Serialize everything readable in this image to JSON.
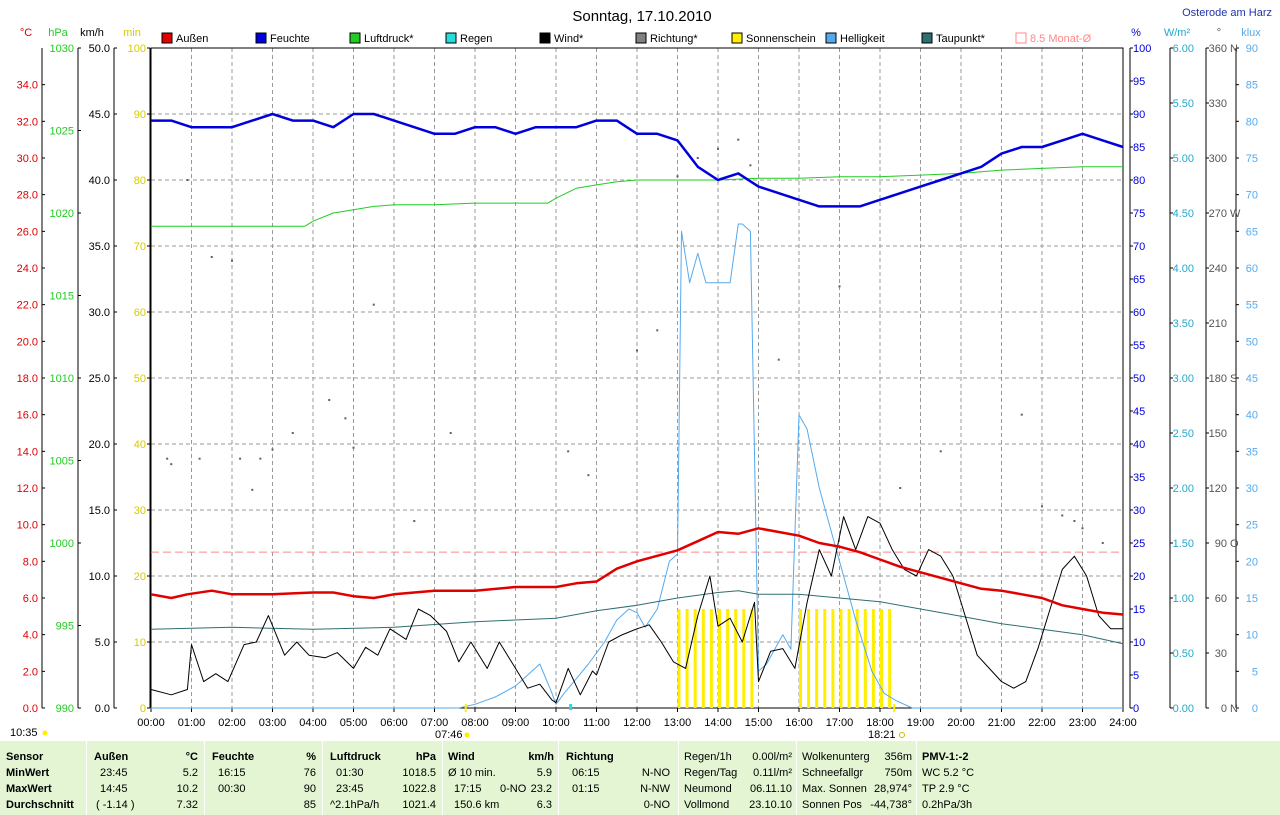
{
  "header": {
    "title": "Sonntag, 17.10.2010",
    "location": "Osterode am Harz"
  },
  "axes_units": {
    "temp": "°C",
    "pressure": "hPa",
    "wind": "km/h",
    "sun": "min",
    "humidity": "%",
    "radiation": "W/m²",
    "direction": "°",
    "brightness": "klux"
  },
  "colors": {
    "aussen": "#e00000",
    "feuchte": "#0000dd",
    "luftdruck": "#22cc22",
    "regen": "#22dddd",
    "wind": "#000000",
    "richtung": "#808080",
    "sonnenschein": "#ffee00",
    "helligkeit": "#55aaee",
    "taupunkt": "#2f6f6f",
    "monat": "#ff8888"
  },
  "chart_data": {
    "type": "line",
    "title": "Sonntag, 17.10.2010",
    "legend_position": "top",
    "grid": true,
    "x_ticks": [
      "00:00",
      "01:00",
      "02:00",
      "03:00",
      "04:00",
      "05:00",
      "06:00",
      "07:00",
      "08:00",
      "09:00",
      "10:00",
      "11:00",
      "12:00",
      "13:00",
      "14:00",
      "15:00",
      "16:00",
      "17:00",
      "18:00",
      "19:00",
      "20:00",
      "21:00",
      "22:00",
      "23:00",
      "24:00"
    ],
    "xlim": [
      0,
      24
    ],
    "axes": {
      "temp": {
        "min": 0,
        "max": 36,
        "step": 2,
        "ticks": [
          "0.0",
          "2.0",
          "4.0",
          "6.0",
          "8.0",
          "10.0",
          "12.0",
          "14.0",
          "16.0",
          "18.0",
          "20.0",
          "22.0",
          "24.0",
          "26.0",
          "28.0",
          "30.0",
          "32.0",
          "34.0"
        ]
      },
      "pressure": {
        "min": 990,
        "max": 1030,
        "ticks": [
          "990",
          "995",
          "1000",
          "1005",
          "1010",
          "1015",
          "1020",
          "1025",
          "1030"
        ]
      },
      "wind": {
        "min": 0,
        "max": 50,
        "ticks": [
          "0.0",
          "5.0",
          "10.0",
          "15.0",
          "20.0",
          "25.0",
          "30.0",
          "35.0",
          "40.0",
          "45.0",
          "50.0"
        ]
      },
      "sun": {
        "min": 0,
        "max": 100,
        "ticks": [
          "0",
          "10",
          "20",
          "30",
          "40",
          "50",
          "60",
          "70",
          "80",
          "90",
          "100"
        ]
      },
      "humidity": {
        "min": 0,
        "max": 100,
        "ticks": [
          "0",
          "5",
          "10",
          "15",
          "20",
          "25",
          "30",
          "35",
          "40",
          "45",
          "50",
          "55",
          "60",
          "65",
          "70",
          "75",
          "80",
          "85",
          "90",
          "95",
          "100"
        ]
      },
      "radiation": {
        "min": 0,
        "max": 6,
        "ticks": [
          "0.00",
          "0.50",
          "1.00",
          "1.50",
          "2.00",
          "2.50",
          "3.00",
          "3.50",
          "4.00",
          "4.50",
          "5.00",
          "5.50",
          "6.00"
        ]
      },
      "direction": {
        "min": 0,
        "max": 360,
        "ticks": [
          "0",
          "30",
          "60",
          "90",
          "120",
          "150",
          "180",
          "210",
          "240",
          "270",
          "300",
          "330",
          "360"
        ],
        "compass": [
          "N",
          "O",
          "S",
          "W",
          "N"
        ]
      },
      "brightness": {
        "min": 0,
        "max": 90,
        "ticks": [
          "0",
          "5",
          "10",
          "15",
          "20",
          "25",
          "30",
          "35",
          "40",
          "45",
          "50",
          "55",
          "60",
          "65",
          "70",
          "75",
          "80",
          "85",
          "90"
        ]
      }
    },
    "series": [
      {
        "name": "Außen",
        "axis": "temp",
        "x": [
          0,
          0.5,
          0.9,
          1.5,
          2,
          3,
          4,
          4.5,
          5,
          5.5,
          6,
          7,
          8,
          9,
          10,
          10.5,
          11,
          11.5,
          12,
          12.5,
          13,
          13.5,
          14,
          14.5,
          15,
          15.5,
          16,
          16.5,
          17,
          17.5,
          18,
          18.5,
          19,
          19.5,
          20,
          20.5,
          21,
          21.5,
          22,
          22.5,
          23,
          23.5,
          24
        ],
        "y": [
          6.2,
          6.0,
          6.2,
          6.4,
          6.2,
          6.2,
          6.3,
          6.3,
          6.1,
          6.0,
          6.2,
          6.4,
          6.4,
          6.6,
          6.6,
          6.8,
          6.9,
          7.6,
          8.0,
          8.3,
          8.6,
          9.1,
          9.6,
          9.5,
          9.8,
          9.6,
          9.4,
          9.0,
          8.8,
          8.5,
          8.1,
          7.7,
          7.4,
          7.1,
          6.8,
          6.5,
          6.4,
          6.2,
          6.0,
          5.6,
          5.4,
          5.2,
          5.1
        ]
      },
      {
        "name": "Feuchte",
        "axis": "humidity",
        "x": [
          0,
          0.5,
          1,
          1.5,
          2,
          2.5,
          3,
          3.5,
          4,
          4.5,
          5,
          5.5,
          6,
          6.5,
          7,
          7.5,
          8,
          8.5,
          9,
          9.5,
          10,
          10.5,
          11,
          11.5,
          12,
          12.5,
          13,
          13.5,
          14,
          14.5,
          15,
          15.5,
          16,
          16.5,
          17,
          17.5,
          18,
          18.5,
          19,
          19.5,
          20,
          20.5,
          21,
          21.5,
          22,
          22.5,
          23,
          23.5,
          24
        ],
        "y": [
          89,
          89,
          88,
          88,
          88,
          89,
          90,
          89,
          89,
          88,
          90,
          90,
          89,
          88,
          87,
          87,
          88,
          88,
          87,
          88,
          88,
          88,
          89,
          89,
          87,
          87,
          86,
          82,
          80,
          81,
          79,
          78,
          77,
          76,
          76,
          76,
          77,
          78,
          79,
          80,
          81,
          82,
          84,
          85,
          85,
          86,
          87,
          86,
          85
        ]
      },
      {
        "name": "Luftdruck",
        "axis": "pressure",
        "x": [
          0,
          2,
          3.8,
          4,
          4.5,
          5,
          5.5,
          6,
          7,
          8,
          9,
          9.8,
          10,
          10.5,
          11,
          11.5,
          12,
          13,
          14,
          15,
          16,
          17,
          18,
          19,
          20,
          21,
          22,
          23,
          24
        ],
        "y": [
          1019.2,
          1019.2,
          1019.2,
          1019.5,
          1020.0,
          1020.2,
          1020.4,
          1020.5,
          1020.5,
          1020.6,
          1020.6,
          1020.6,
          1020.9,
          1021.5,
          1021.7,
          1021.9,
          1022.0,
          1022.0,
          1022.0,
          1022.1,
          1022.1,
          1022.2,
          1022.2,
          1022.3,
          1022.4,
          1022.6,
          1022.7,
          1022.8,
          1022.8
        ]
      },
      {
        "name": "Wind",
        "axis": "wind",
        "x": [
          0,
          0.5,
          0.9,
          1,
          1.3,
          1.6,
          1.9,
          2.3,
          2.6,
          2.9,
          3.3,
          3.6,
          3.9,
          4.3,
          4.6,
          5,
          5.3,
          5.6,
          5.9,
          6.3,
          6.6,
          6.9,
          7.3,
          7.6,
          7.9,
          8.3,
          8.6,
          9,
          9.3,
          9.6,
          9.9,
          10,
          10.3,
          10.6,
          10.9,
          11,
          11.3,
          11.6,
          12,
          12.3,
          12.6,
          12.9,
          13.2,
          13.5,
          13.8,
          14,
          14.3,
          14.6,
          14.9,
          15,
          15.3,
          15.6,
          15.9,
          16.2,
          16.5,
          16.8,
          17.1,
          17.4,
          17.7,
          18,
          18.3,
          18.6,
          18.9,
          19.2,
          19.5,
          19.8,
          20.1,
          20.4,
          20.7,
          21,
          21.3,
          21.6,
          21.9,
          22.2,
          22.5,
          22.8,
          23.1,
          23.4,
          23.7,
          24
        ],
        "y": [
          1.4,
          1.0,
          1.4,
          4.8,
          2.0,
          2.6,
          2.0,
          4.8,
          5.0,
          7.0,
          4.0,
          5.0,
          4.0,
          3.8,
          4.2,
          3.0,
          4.6,
          4.0,
          6.0,
          5.2,
          7.5,
          7.0,
          5.8,
          3.5,
          5.0,
          3.0,
          5.0,
          3.0,
          1.5,
          1.8,
          0.6,
          0.4,
          3.0,
          1.0,
          2.8,
          2.5,
          5.0,
          5.5,
          6.0,
          6.3,
          5.0,
          3.5,
          3.0,
          7.0,
          10.0,
          6.2,
          6.8,
          5.0,
          8.0,
          2.0,
          4.3,
          4.5,
          3.0,
          8.0,
          12.0,
          10.0,
          14.5,
          12.0,
          14.5,
          14.0,
          12.0,
          10.5,
          10.0,
          12.0,
          11.5,
          10.0,
          7.0,
          4.0,
          3.0,
          2.0,
          1.5,
          2.0,
          4.5,
          7.5,
          10.5,
          11.5,
          10.0,
          7.0,
          6.0,
          6.0
        ]
      },
      {
        "name": "Sonnenschein",
        "axis": "sun",
        "bars_x": [
          13.0,
          13.2,
          13.4,
          13.6,
          13.8,
          14.0,
          14.2,
          14.4,
          14.6,
          14.8,
          16.0,
          16.2,
          16.4,
          16.6,
          16.8,
          17.0,
          17.2,
          17.4,
          17.6,
          17.8,
          18.0,
          18.2
        ],
        "bars_y": [
          15,
          15,
          15,
          15,
          15,
          15,
          15,
          15,
          15,
          15,
          15,
          15,
          15,
          15,
          15,
          15,
          15,
          15,
          15,
          15,
          15,
          15
        ]
      },
      {
        "name": "Helligkeit",
        "axis": "brightness",
        "x": [
          0,
          7.6,
          8,
          8.5,
          9,
          9.3,
          9.6,
          9.9,
          10,
          10.2,
          10.5,
          10.8,
          11,
          11.2,
          11.5,
          11.8,
          12,
          12.2,
          12.5,
          12.8,
          13.0,
          13.1,
          13.3,
          13.5,
          13.7,
          13.9,
          14.1,
          14.3,
          14.5,
          14.6,
          14.8,
          15,
          15.2,
          15.4,
          15.6,
          15.8,
          16.0,
          16.2,
          16.5,
          16.8,
          17.1,
          17.4,
          17.8,
          18.1,
          18.4,
          18.8,
          24
        ],
        "y": [
          0,
          0,
          0.5,
          1.5,
          3,
          4.5,
          6,
          2,
          0.5,
          2,
          4,
          6,
          7.5,
          9,
          12,
          13.5,
          13,
          11,
          13.5,
          20,
          21,
          65,
          58,
          62,
          58,
          58,
          58,
          58,
          66,
          66,
          65,
          5,
          6,
          8,
          10,
          8,
          40,
          38,
          30,
          24,
          18,
          12,
          5,
          2,
          1,
          0,
          0
        ]
      },
      {
        "name": "Taupunkt",
        "axis": "temp",
        "x": [
          0,
          2,
          4,
          6,
          8,
          9,
          10,
          11,
          12,
          13,
          14,
          14.5,
          15,
          16,
          17,
          18,
          19,
          20,
          21,
          22,
          23,
          24
        ],
        "y": [
          4.3,
          4.4,
          4.3,
          4.4,
          4.7,
          4.8,
          4.9,
          5.3,
          5.6,
          6.0,
          6.3,
          6.4,
          6.2,
          6.2,
          6.0,
          5.8,
          5.4,
          5.0,
          4.6,
          4.3,
          4.0,
          3.5
        ]
      },
      {
        "name": "Richtung",
        "axis": "direction",
        "x": [
          0.4,
          0.5,
          0.9,
          1.2,
          1.5,
          2.0,
          2.2,
          2.5,
          2.7,
          3.0,
          3.5,
          4.4,
          4.8,
          5.0,
          5.5,
          6.5,
          7.4,
          10.3,
          10.8,
          12.0,
          12.5,
          13.0,
          13.5,
          14.0,
          14.5,
          14.8,
          15.5,
          17.0,
          18.5,
          19.5,
          21.5,
          22,
          22.5,
          22.8,
          23.0,
          23.5
        ],
        "y": [
          136,
          133,
          288,
          136,
          246,
          244,
          136,
          119,
          136,
          141,
          150,
          168,
          158,
          142,
          220,
          102,
          150,
          140,
          127,
          195,
          206,
          290,
          300,
          305,
          310,
          296,
          190,
          230,
          120,
          140,
          160,
          110,
          105,
          102,
          98,
          90
        ]
      },
      {
        "name": "8.5 Monat-Ø",
        "axis": "temp",
        "constant": 8.5
      }
    ],
    "legend": [
      "Außen",
      "Feuchte",
      "Luftdruck*",
      "Regen",
      "Wind*",
      "Richtung*",
      "Sonnenschein",
      "Helligkeit",
      "Taupunkt*",
      "8.5 Monat-Ø"
    ],
    "annotations": [
      "10:35",
      "07:46",
      "18:21"
    ]
  },
  "footer": {
    "sensor": {
      "h1": "Sensor",
      "min": "MinWert",
      "max": "MaxWert",
      "avg": "Durchschnitt"
    },
    "aussen": {
      "title": "Außen",
      "unit": "°C",
      "min_t": "23:45",
      "min_v": "5.2",
      "max_t": "14:45",
      "max_v": "10.2",
      "avg_t": "( -1.14 )",
      "avg_v": "7.32"
    },
    "feuchte": {
      "title": "Feuchte",
      "unit": "%",
      "min_t": "16:15",
      "min_v": "76",
      "max_t": "00:30",
      "max_v": "90",
      "avg_t": "",
      "avg_v": "85"
    },
    "luftdruck": {
      "title": "Luftdruck",
      "unit": "hPa",
      "min_t": "01:30",
      "min_v": "1018.5",
      "max_t": "23:45",
      "max_v": "1022.8",
      "avg_t": "^2.1hPa/h",
      "avg_v": "1021.4"
    },
    "wind": {
      "title": "Wind",
      "unit": "km/h",
      "min_t": "Ø 10 min.",
      "min_v": "5.9",
      "max_t": "17:15",
      "max_d": "0-NO",
      "max_v": "23.2",
      "avg_t": "150.6 km",
      "avg_v": "6.3"
    },
    "richtung": {
      "title": "Richtung",
      "min_t": "06:15",
      "min_v": "N-NO",
      "max_t": "01:15",
      "max_v": "N-NW",
      "avg_v": "0-NO"
    },
    "info1": {
      "r1_l": "Regen/1h",
      "r1_v": "0.00l/m²",
      "r2_l": "Regen/Tag",
      "r2_v": "0.11l/m²",
      "r3_l": "Neumond",
      "r3_v": "06.11.10",
      "r4_l": "Vollmond",
      "r4_v": "23.10.10"
    },
    "info2": {
      "r1_l": "Wolkenunterg",
      "r1_v": "356m",
      "r2_l": "Schneefallgr",
      "r2_v": "750m",
      "r3_l": "Max. Sonnen",
      "r3_v": "28,974°",
      "r4_l": "Sonnen Pos",
      "r4_v": "-44,738°"
    },
    "pmv": {
      "r1": "PMV-1:-2",
      "r2": "WC 5.2 °C",
      "r3": "TP 2.9 °C",
      "r4": "0.2hPa/3h"
    }
  }
}
